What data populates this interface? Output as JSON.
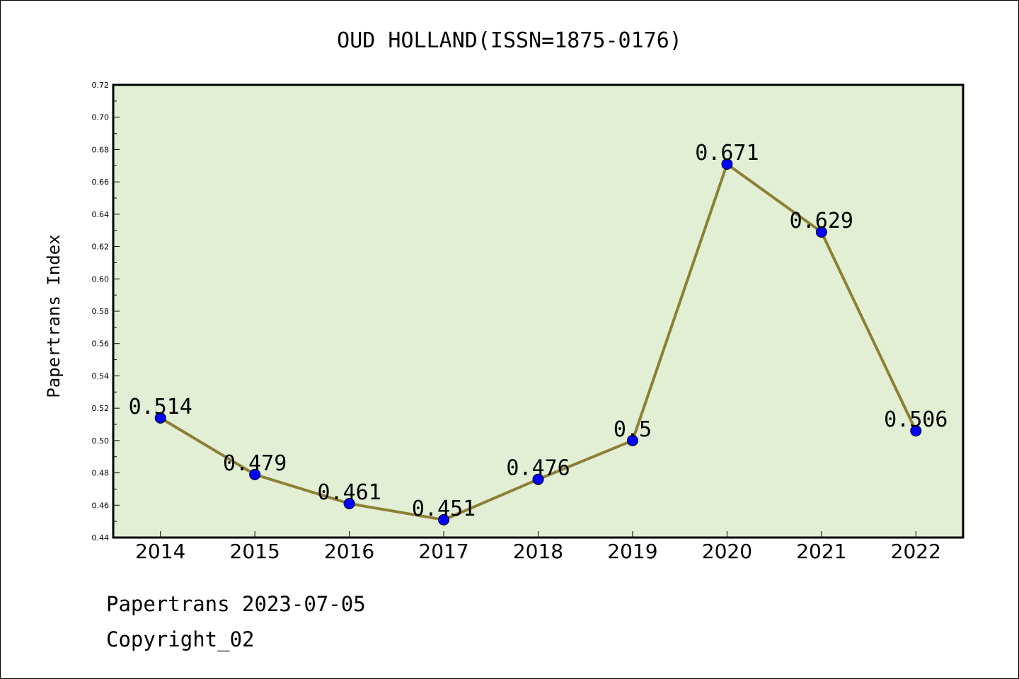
{
  "chart_data": {
    "type": "line",
    "title": "OUD HOLLAND(ISSN=1875-0176)",
    "xlabel": "",
    "ylabel": "Papertrans Index",
    "categories": [
      "2014",
      "2015",
      "2016",
      "2017",
      "2018",
      "2019",
      "2020",
      "2021",
      "2022"
    ],
    "values": [
      0.514,
      0.479,
      0.461,
      0.451,
      0.476,
      0.5,
      0.671,
      0.629,
      0.506
    ],
    "data_labels": [
      "0.514",
      "0.479",
      "0.461",
      "0.451",
      "0.476",
      "0.5",
      "0.671",
      "0.629",
      "0.506"
    ],
    "ylim": [
      0.44,
      0.72
    ],
    "yticks": [
      "0.44",
      "0.46",
      "0.48",
      "0.50",
      "0.52",
      "0.54",
      "0.56",
      "0.58",
      "0.60",
      "0.62",
      "0.64",
      "0.66",
      "0.68",
      "0.70",
      "0.72"
    ],
    "grid": false,
    "colors": {
      "plot_background": "#e2efd5",
      "line": "#8c8035",
      "marker": "#0000ff"
    }
  },
  "footer": {
    "line1": "Papertrans 2023-07-05",
    "line2": "Copyright_02"
  }
}
